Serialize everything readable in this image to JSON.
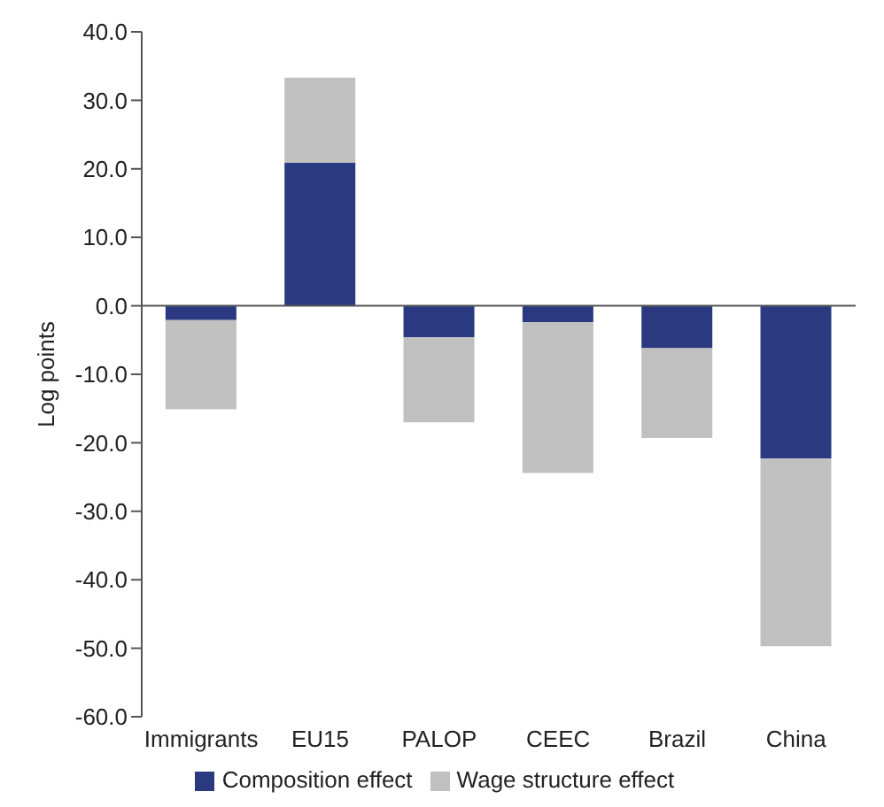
{
  "chart_data": {
    "type": "bar",
    "ylabel": "Log points",
    "categories": [
      "Immigrants",
      "EU15",
      "PALOP",
      "CEEC",
      "Brazil",
      "China"
    ],
    "stacked": true,
    "series": [
      {
        "name": "Composition effect",
        "color": "#2b3a80",
        "values": [
          -2.1,
          20.9,
          -4.6,
          -2.4,
          -6.2,
          -22.3
        ]
      },
      {
        "name": "Wage structure effect",
        "color": "#c0c0c0",
        "values": [
          -13.0,
          12.4,
          -12.4,
          -22.0,
          -13.1,
          -27.4
        ]
      }
    ],
    "ylim": [
      -60,
      40
    ],
    "yticks": [
      {
        "value": -60,
        "label": "-60.0"
      },
      {
        "value": -50,
        "label": "-50.0"
      },
      {
        "value": -40,
        "label": "-40.0"
      },
      {
        "value": -30,
        "label": "-30.0"
      },
      {
        "value": -20,
        "label": "-20.0"
      },
      {
        "value": -10,
        "label": "-10.0"
      },
      {
        "value": 0,
        "label": "0.0"
      },
      {
        "value": 10,
        "label": "10.0"
      },
      {
        "value": 20,
        "label": "20.0"
      },
      {
        "value": 30,
        "label": "30.0"
      },
      {
        "value": 40,
        "label": "40.0"
      }
    ],
    "legend": "bottom"
  }
}
